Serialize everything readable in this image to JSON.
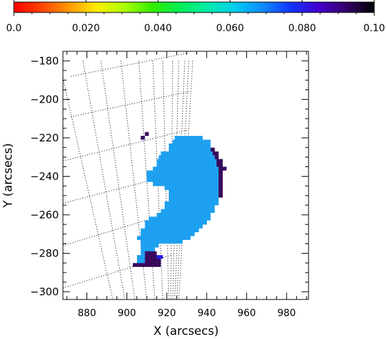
{
  "chart_data": {
    "type": "heatmap",
    "colorbar": {
      "min": 0.0,
      "max": 0.1,
      "tick_labels": [
        "0.0",
        "0.020",
        "0.040",
        "0.060",
        "0.080",
        "0.10"
      ],
      "tick_values": [
        0.0,
        0.02,
        0.04,
        0.06,
        0.08,
        0.1
      ],
      "colors": [
        "#ff0000",
        "#ff4400",
        "#ff9900",
        "#ffee00",
        "#aaff00",
        "#33ee00",
        "#00ee55",
        "#00eeaa",
        "#00ccee",
        "#1188ff",
        "#1133ff",
        "#4400cc",
        "#330066",
        "#000000"
      ]
    },
    "xlabel": "X (arcsecs)",
    "ylabel": "Y (arcsecs)",
    "xlim": [
      868,
      991
    ],
    "ylim": [
      -304,
      -175
    ],
    "x_ticks": [
      880,
      900,
      920,
      940,
      960,
      980
    ],
    "x_tick_labels": [
      "880",
      "900",
      "920",
      "940",
      "960",
      "980"
    ],
    "y_ticks": [
      -180,
      -200,
      -220,
      -240,
      -260,
      -280,
      -300
    ],
    "y_tick_labels": [
      "−180",
      "−200",
      "−220",
      "−240",
      "−260",
      "−280",
      "−300"
    ],
    "pixel_size_arcsec": 2,
    "regions": [
      {
        "name": "main",
        "color": "#1ea0f0",
        "value": 0.062,
        "rows": [
          {
            "y": -220,
            "x_from": 924,
            "x_to": 938
          },
          {
            "y": -222,
            "x_from": 923,
            "x_to": 942
          },
          {
            "y": -224,
            "x_from": 921,
            "x_to": 942
          },
          {
            "y": -226,
            "x_from": 921,
            "x_to": 942
          },
          {
            "y": -228,
            "x_from": 917,
            "x_to": 944
          },
          {
            "y": -230,
            "x_from": 916,
            "x_to": 944
          },
          {
            "y": -232,
            "x_from": 915,
            "x_to": 946
          },
          {
            "y": -234,
            "x_from": 915,
            "x_to": 946
          },
          {
            "y": -236,
            "x_from": 913,
            "x_to": 946
          },
          {
            "y": -238,
            "x_from": 910,
            "x_to": 946
          },
          {
            "y": -240,
            "x_from": 910,
            "x_to": 946
          },
          {
            "y": -242,
            "x_from": 910,
            "x_to": 946
          },
          {
            "y": -244,
            "x_from": 913,
            "x_to": 946
          },
          {
            "y": -246,
            "x_from": 919,
            "x_to": 946
          },
          {
            "y": -248,
            "x_from": 921,
            "x_to": 946
          },
          {
            "y": -250,
            "x_from": 921,
            "x_to": 946
          },
          {
            "y": -252,
            "x_from": 921,
            "x_to": 946
          },
          {
            "y": -254,
            "x_from": 919,
            "x_to": 946
          },
          {
            "y": -256,
            "x_from": 919,
            "x_to": 944
          },
          {
            "y": -258,
            "x_from": 917,
            "x_to": 944
          },
          {
            "y": -260,
            "x_from": 915,
            "x_to": 942
          },
          {
            "y": -262,
            "x_from": 911,
            "x_to": 942
          },
          {
            "y": -264,
            "x_from": 909,
            "x_to": 940
          },
          {
            "y": -266,
            "x_from": 909,
            "x_to": 938
          },
          {
            "y": -268,
            "x_from": 907,
            "x_to": 936
          },
          {
            "y": -270,
            "x_from": 907,
            "x_to": 934
          },
          {
            "y": -272,
            "x_from": 905,
            "x_to": 932
          },
          {
            "y": -274,
            "x_from": 907,
            "x_to": 928
          },
          {
            "y": -276,
            "x_from": 907,
            "x_to": 916
          },
          {
            "y": -278,
            "x_from": 907,
            "x_to": 914
          },
          {
            "y": -280,
            "x_from": 907,
            "x_to": 914
          },
          {
            "y": -282,
            "x_from": 905,
            "x_to": 914
          },
          {
            "y": -284,
            "x_from": 905,
            "x_to": 910
          }
        ]
      },
      {
        "name": "limb-edge",
        "color": "#3a0a5c",
        "value": 0.092,
        "rows": [
          {
            "y": -226,
            "x_from": 942,
            "x_to": 944
          },
          {
            "y": -228,
            "x_from": 943,
            "x_to": 946
          },
          {
            "y": -230,
            "x_from": 944,
            "x_to": 946
          },
          {
            "y": -232,
            "x_from": 945,
            "x_to": 948
          },
          {
            "y": -234,
            "x_from": 945,
            "x_to": 948
          },
          {
            "y": -236,
            "x_from": 946,
            "x_to": 950
          },
          {
            "y": -238,
            "x_from": 946,
            "x_to": 948
          },
          {
            "y": -240,
            "x_from": 946,
            "x_to": 948
          },
          {
            "y": -242,
            "x_from": 946,
            "x_to": 948
          },
          {
            "y": -244,
            "x_from": 946,
            "x_to": 948
          },
          {
            "y": -246,
            "x_from": 946,
            "x_to": 948
          },
          {
            "y": -248,
            "x_from": 946,
            "x_to": 948
          },
          {
            "y": -250,
            "x_from": 946,
            "x_to": 948
          }
        ]
      },
      {
        "name": "isolated",
        "color": "#3a0a5c",
        "value": 0.092,
        "rows": [
          {
            "y": -218,
            "x_from": 909,
            "x_to": 911
          },
          {
            "y": -220,
            "x_from": 907,
            "x_to": 909
          }
        ]
      },
      {
        "name": "bottom-cluster",
        "color": "#3a0a5c",
        "value": 0.092,
        "rows": [
          {
            "y": -280,
            "x_from": 909,
            "x_to": 915
          },
          {
            "y": -282,
            "x_from": 909,
            "x_to": 915
          },
          {
            "y": -284,
            "x_from": 909,
            "x_to": 917
          },
          {
            "y": -286,
            "x_from": 903,
            "x_to": 917
          }
        ]
      },
      {
        "name": "blue-spot",
        "color": "#2a1ee8",
        "value": 0.078,
        "rows": [
          {
            "y": -282,
            "x_from": 915,
            "x_to": 918
          }
        ]
      }
    ],
    "grid": true
  }
}
